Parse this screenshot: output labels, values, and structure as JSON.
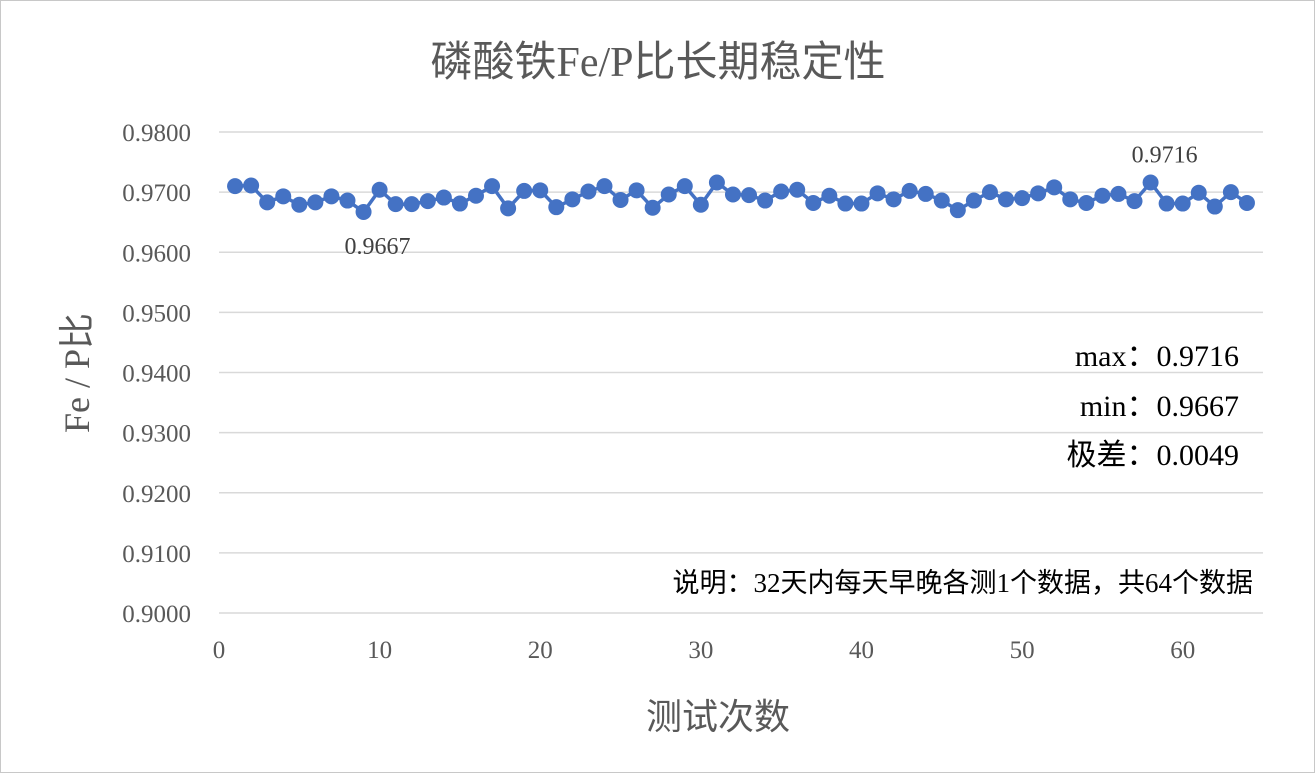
{
  "chart_data": {
    "type": "scatter",
    "mode": "lines+markers",
    "title": "磷酸铁Fe/P比长期稳定性",
    "xlabel": "测试次数",
    "ylabel": "Fe / P比",
    "xlim": [
      0,
      65
    ],
    "ylim": [
      0.9,
      0.98
    ],
    "xticks": [
      0,
      10,
      20,
      30,
      40,
      50,
      60
    ],
    "xtick_labels": [
      "0",
      "10",
      "20",
      "30",
      "40",
      "50",
      "60"
    ],
    "yticks": [
      0.9,
      0.91,
      0.92,
      0.93,
      0.94,
      0.95,
      0.96,
      0.97,
      0.98
    ],
    "ytick_labels": [
      "0.9000",
      "0.9100",
      "0.9200",
      "0.9300",
      "0.9400",
      "0.9500",
      "0.9600",
      "0.9700",
      "0.9800"
    ],
    "grid": "horizontal",
    "series_color": "#4472C4",
    "x": [
      1,
      2,
      3,
      4,
      5,
      6,
      7,
      8,
      9,
      10,
      11,
      12,
      13,
      14,
      15,
      16,
      17,
      18,
      19,
      20,
      21,
      22,
      23,
      24,
      25,
      26,
      27,
      28,
      29,
      30,
      31,
      32,
      33,
      34,
      35,
      36,
      37,
      38,
      39,
      40,
      41,
      42,
      43,
      44,
      45,
      46,
      47,
      48,
      49,
      50,
      51,
      52,
      53,
      54,
      55,
      56,
      57,
      58,
      59,
      60,
      61,
      62,
      63,
      64
    ],
    "y": [
      0.971,
      0.9711,
      0.9683,
      0.9693,
      0.9679,
      0.9683,
      0.9693,
      0.9686,
      0.9667,
      0.9704,
      0.968,
      0.968,
      0.9685,
      0.9691,
      0.9681,
      0.9694,
      0.971,
      0.9673,
      0.9702,
      0.9703,
      0.9675,
      0.9688,
      0.9701,
      0.971,
      0.9687,
      0.9703,
      0.9674,
      0.9696,
      0.971,
      0.9679,
      0.9716,
      0.9696,
      0.9695,
      0.9686,
      0.9701,
      0.9704,
      0.9682,
      0.9694,
      0.9681,
      0.9681,
      0.9698,
      0.9688,
      0.9702,
      0.9697,
      0.9686,
      0.967,
      0.9686,
      0.97,
      0.9688,
      0.969,
      0.9698,
      0.9708,
      0.9688,
      0.9682,
      0.9694,
      0.9697,
      0.9685,
      0.9716,
      0.9681,
      0.9681,
      0.9699,
      0.9676,
      0.97,
      0.9682
    ],
    "data_labels": [
      {
        "x": 9,
        "y": 0.9667,
        "text": "0.9667"
      },
      {
        "x": 58,
        "y": 0.9716,
        "text": "0.9716"
      }
    ],
    "annotations": {
      "max": "max：0.9716",
      "min": "min：0.9667",
      "range": "极差：0.0049",
      "note": "说明：32天内每天早晚各测1个数据，共64个数据"
    }
  }
}
